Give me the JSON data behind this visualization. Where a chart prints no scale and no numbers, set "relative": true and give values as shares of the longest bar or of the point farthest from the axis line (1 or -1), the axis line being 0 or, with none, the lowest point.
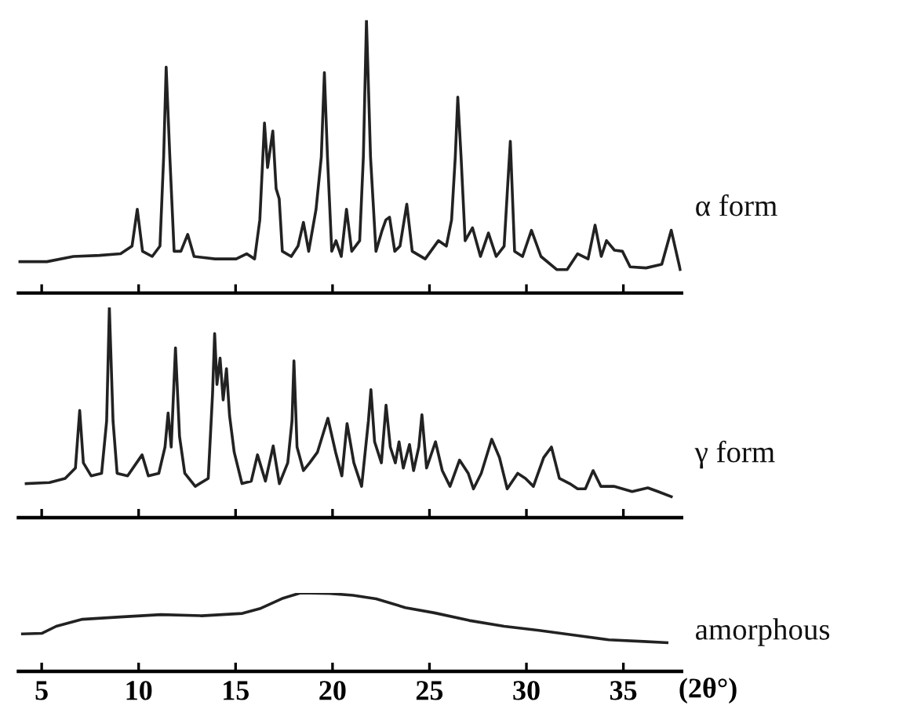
{
  "chart_data": [
    {
      "type": "line",
      "relative": true,
      "xlim": [
        3.8,
        38.0
      ],
      "xticks": [
        {
          "value": 5,
          "label": null
        },
        {
          "value": 10,
          "label": null
        },
        {
          "value": 15,
          "label": null
        },
        {
          "value": 20,
          "label": null
        },
        {
          "value": 25,
          "label": null
        },
        {
          "value": 30,
          "label": null
        },
        {
          "value": 35,
          "label": null
        }
      ],
      "tick_labels": false,
      "grid": false,
      "legend": false,
      "series": [
        {
          "name": "α form",
          "color": "#222222",
          "x": [
            3.86,
            5.27,
            6.63,
            7.98,
            9.07,
            9.66,
            9.93,
            10.2,
            10.7,
            11.1,
            11.29,
            11.42,
            11.61,
            11.83,
            12.18,
            12.53,
            12.86,
            13.94,
            15.03,
            15.57,
            15.98,
            16.25,
            16.49,
            16.65,
            16.92,
            17.09,
            17.25,
            17.41,
            17.87,
            18.22,
            18.5,
            18.77,
            19.15,
            19.42,
            19.58,
            19.74,
            19.96,
            20.18,
            20.45,
            20.72,
            20.99,
            21.4,
            21.59,
            21.75,
            21.96,
            22.24,
            22.56,
            22.75,
            22.94,
            23.21,
            23.48,
            23.83,
            24.11,
            24.78,
            25.46,
            25.87,
            26.14,
            26.33,
            26.46,
            26.63,
            26.84,
            27.22,
            27.63,
            28.04,
            28.44,
            28.85,
            29.04,
            29.17,
            29.39,
            29.8,
            30.26,
            30.75,
            31.56,
            32.1,
            32.64,
            33.18,
            33.54,
            33.86,
            34.13,
            34.54,
            34.95,
            35.35,
            36.17,
            36.98,
            37.47,
            37.93
          ],
          "values": [
            0.115,
            0.115,
            0.134,
            0.138,
            0.144,
            0.172,
            0.307,
            0.153,
            0.134,
            0.172,
            0.498,
            0.828,
            0.498,
            0.153,
            0.153,
            0.215,
            0.134,
            0.125,
            0.125,
            0.144,
            0.125,
            0.268,
            0.623,
            0.46,
            0.594,
            0.383,
            0.345,
            0.153,
            0.134,
            0.172,
            0.259,
            0.153,
            0.307,
            0.498,
            0.808,
            0.498,
            0.153,
            0.192,
            0.134,
            0.307,
            0.153,
            0.192,
            0.498,
            1.0,
            0.498,
            0.153,
            0.23,
            0.268,
            0.278,
            0.153,
            0.172,
            0.326,
            0.153,
            0.125,
            0.192,
            0.172,
            0.268,
            0.498,
            0.718,
            0.498,
            0.192,
            0.239,
            0.134,
            0.22,
            0.134,
            0.172,
            0.402,
            0.556,
            0.153,
            0.134,
            0.23,
            0.134,
            0.086,
            0.086,
            0.144,
            0.125,
            0.249,
            0.134,
            0.192,
            0.157,
            0.153,
            0.096,
            0.092,
            0.105,
            0.23,
            0.086
          ]
        }
      ]
    },
    {
      "type": "line",
      "relative": true,
      "xlim": [
        3.8,
        38.0
      ],
      "xticks": [
        {
          "value": 5,
          "label": null
        },
        {
          "value": 10,
          "label": null
        },
        {
          "value": 15,
          "label": null
        },
        {
          "value": 20,
          "label": null
        },
        {
          "value": 25,
          "label": null
        },
        {
          "value": 30,
          "label": null
        },
        {
          "value": 35,
          "label": null
        }
      ],
      "tick_labels": false,
      "grid": false,
      "legend": false,
      "series": [
        {
          "name": "γ form",
          "color": "#222222",
          "x": [
            4.2,
            5.4,
            6.21,
            6.74,
            6.96,
            7.15,
            7.55,
            8.09,
            8.35,
            8.49,
            8.68,
            8.89,
            9.43,
            10.18,
            10.5,
            11.04,
            11.36,
            11.52,
            11.68,
            11.9,
            12.11,
            12.38,
            12.92,
            13.59,
            13.81,
            13.92,
            14.04,
            14.2,
            14.36,
            14.53,
            14.69,
            14.93,
            15.33,
            15.81,
            16.13,
            16.54,
            16.94,
            17.26,
            17.69,
            17.91,
            18.01,
            18.17,
            18.5,
            18.82,
            19.22,
            19.76,
            20.16,
            20.48,
            20.75,
            21.1,
            21.5,
            21.85,
            21.98,
            22.17,
            22.52,
            22.76,
            22.98,
            23.24,
            23.43,
            23.65,
            23.97,
            24.18,
            24.45,
            24.61,
            24.85,
            25.31,
            25.66,
            26.06,
            26.55,
            27.0,
            27.27,
            27.67,
            28.21,
            28.61,
            29.01,
            29.55,
            29.95,
            30.36,
            30.89,
            31.29,
            31.7,
            32.23,
            32.64,
            33.04,
            33.44,
            33.84,
            34.51,
            35.45,
            36.26,
            36.79,
            37.47
          ],
          "values": [
            0.162,
            0.167,
            0.187,
            0.236,
            0.51,
            0.261,
            0.199,
            0.211,
            0.46,
            1.0,
            0.46,
            0.211,
            0.199,
            0.299,
            0.199,
            0.211,
            0.336,
            0.498,
            0.336,
            0.808,
            0.386,
            0.211,
            0.149,
            0.187,
            0.585,
            0.876,
            0.634,
            0.759,
            0.56,
            0.709,
            0.485,
            0.311,
            0.162,
            0.174,
            0.299,
            0.174,
            0.341,
            0.162,
            0.261,
            0.46,
            0.746,
            0.336,
            0.224,
            0.261,
            0.311,
            0.473,
            0.311,
            0.199,
            0.448,
            0.261,
            0.149,
            0.46,
            0.609,
            0.361,
            0.261,
            0.535,
            0.336,
            0.261,
            0.361,
            0.236,
            0.348,
            0.224,
            0.336,
            0.49,
            0.236,
            0.361,
            0.224,
            0.149,
            0.274,
            0.211,
            0.137,
            0.211,
            0.373,
            0.286,
            0.137,
            0.211,
            0.187,
            0.149,
            0.286,
            0.336,
            0.187,
            0.162,
            0.137,
            0.137,
            0.224,
            0.149,
            0.149,
            0.124,
            0.142,
            0.124,
            0.1
          ]
        }
      ]
    },
    {
      "type": "line",
      "relative": true,
      "xlim": [
        3.8,
        38.0
      ],
      "xticks": [
        5,
        10,
        15,
        20,
        25,
        30,
        35
      ],
      "xlabel": "(2θ°)",
      "tick_labels": "x",
      "grid": false,
      "legend": false,
      "series": [
        {
          "name": "amorphous",
          "color": "#222222",
          "x": [
            4.01,
            5.0,
            5.75,
            7.1,
            9.05,
            11.15,
            13.25,
            15.35,
            16.25,
            17.45,
            18.35,
            19.85,
            21.05,
            22.25,
            23.75,
            25.25,
            27.05,
            28.85,
            30.65,
            32.45,
            34.25,
            36.05,
            37.25
          ],
          "values": [
            0.478,
            0.485,
            0.575,
            0.664,
            0.694,
            0.724,
            0.709,
            0.739,
            0.799,
            0.933,
            1.0,
            0.993,
            0.97,
            0.925,
            0.813,
            0.746,
            0.649,
            0.575,
            0.522,
            0.463,
            0.403,
            0.381,
            0.366
          ]
        }
      ]
    }
  ]
}
